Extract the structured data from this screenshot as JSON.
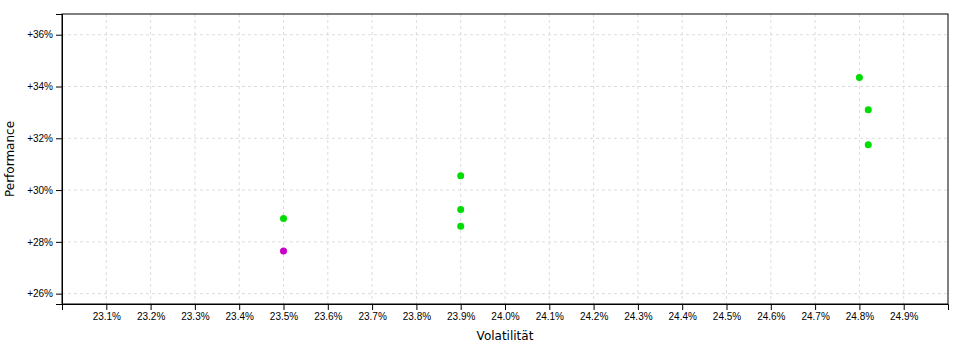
{
  "chart_data": {
    "type": "scatter",
    "xlabel": "Volatilität",
    "ylabel": "Performance",
    "xlim": [
      23.0,
      25.0
    ],
    "ylim": [
      25.6,
      36.8
    ],
    "xticks": [
      {
        "value": 23.1,
        "label": "23.1%"
      },
      {
        "value": 23.2,
        "label": "23.2%"
      },
      {
        "value": 23.3,
        "label": "23.3%"
      },
      {
        "value": 23.4,
        "label": "23.4%"
      },
      {
        "value": 23.5,
        "label": "23.5%"
      },
      {
        "value": 23.6,
        "label": "23.6%"
      },
      {
        "value": 23.7,
        "label": "23.7%"
      },
      {
        "value": 23.8,
        "label": "23.8%"
      },
      {
        "value": 23.9,
        "label": "23.9%"
      },
      {
        "value": 24.0,
        "label": "24.0%"
      },
      {
        "value": 24.1,
        "label": "24.1%"
      },
      {
        "value": 24.2,
        "label": "24.2%"
      },
      {
        "value": 24.3,
        "label": "24.3%"
      },
      {
        "value": 24.4,
        "label": "24.4%"
      },
      {
        "value": 24.5,
        "label": "24.5%"
      },
      {
        "value": 24.6,
        "label": "24.6%"
      },
      {
        "value": 24.7,
        "label": "24.7%"
      },
      {
        "value": 24.8,
        "label": "24.8%"
      },
      {
        "value": 24.9,
        "label": "24.9%"
      }
    ],
    "yticks": [
      {
        "value": 26,
        "label": "+26%"
      },
      {
        "value": 28,
        "label": "+28%"
      },
      {
        "value": 30,
        "label": "+30%"
      },
      {
        "value": 32,
        "label": "+32%"
      },
      {
        "value": 34,
        "label": "+34%"
      },
      {
        "value": 36,
        "label": "+36%"
      }
    ],
    "grid": true,
    "x": [
      23.5,
      23.5,
      23.9,
      23.9,
      23.9,
      24.8,
      24.82,
      24.82
    ],
    "values": [
      28.9,
      27.65,
      30.55,
      29.25,
      28.6,
      34.35,
      33.1,
      31.75
    ],
    "colors": [
      "#00dd00",
      "#cc00cc",
      "#00dd00",
      "#00dd00",
      "#00dd00",
      "#00dd00",
      "#00dd00",
      "#00dd00"
    ]
  }
}
